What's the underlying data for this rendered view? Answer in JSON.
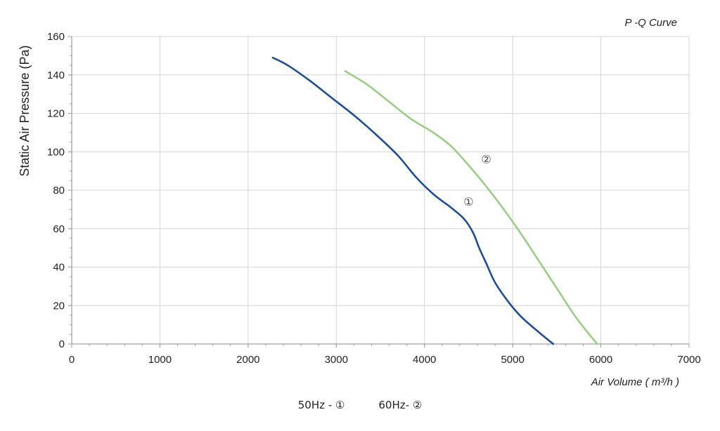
{
  "chart_data": {
    "type": "line",
    "title": "P -Q Curve",
    "xlabel": "Air Volume  ( m³/h )",
    "ylabel": "Static Air Pressure  (Pa)",
    "xlim": [
      0,
      7000
    ],
    "ylim": [
      0,
      160
    ],
    "x_ticks": [
      "0",
      "1000",
      "2000",
      "3000",
      "4000",
      "5000",
      "6000",
      "7000"
    ],
    "y_ticks": [
      "0",
      "20",
      "40",
      "60",
      "80",
      "100",
      "120",
      "140",
      "160"
    ],
    "grid": true,
    "series": [
      {
        "name": "①",
        "color": "#1f4e96",
        "x": [
          2280,
          2450,
          2700,
          2950,
          3200,
          3450,
          3700,
          3900,
          4100,
          4300,
          4450,
          4550,
          4620,
          4700,
          4800,
          4950,
          5100,
          5300,
          5460
        ],
        "y": [
          149,
          145,
          137,
          128,
          119,
          109,
          98,
          87,
          78,
          71,
          65,
          58,
          50,
          42,
          32,
          22,
          14,
          6,
          0
        ]
      },
      {
        "name": "②",
        "color": "#9ccc86",
        "x": [
          3100,
          3350,
          3600,
          3850,
          4100,
          4300,
          4500,
          4700,
          4900,
          5100,
          5300,
          5500,
          5700,
          5850,
          5960
        ],
        "y": [
          142,
          135,
          126,
          117,
          110,
          103,
          93,
          82,
          70,
          57,
          43,
          29,
          15,
          6,
          0
        ]
      }
    ],
    "annotations": [
      {
        "text": "②",
        "x": 4700,
        "y": 94
      },
      {
        "text": "①",
        "x": 4500,
        "y": 72
      }
    ],
    "legend": {
      "items": [
        "50Hz -  ①",
        "60Hz-  ②"
      ],
      "placement": "bottom"
    }
  }
}
